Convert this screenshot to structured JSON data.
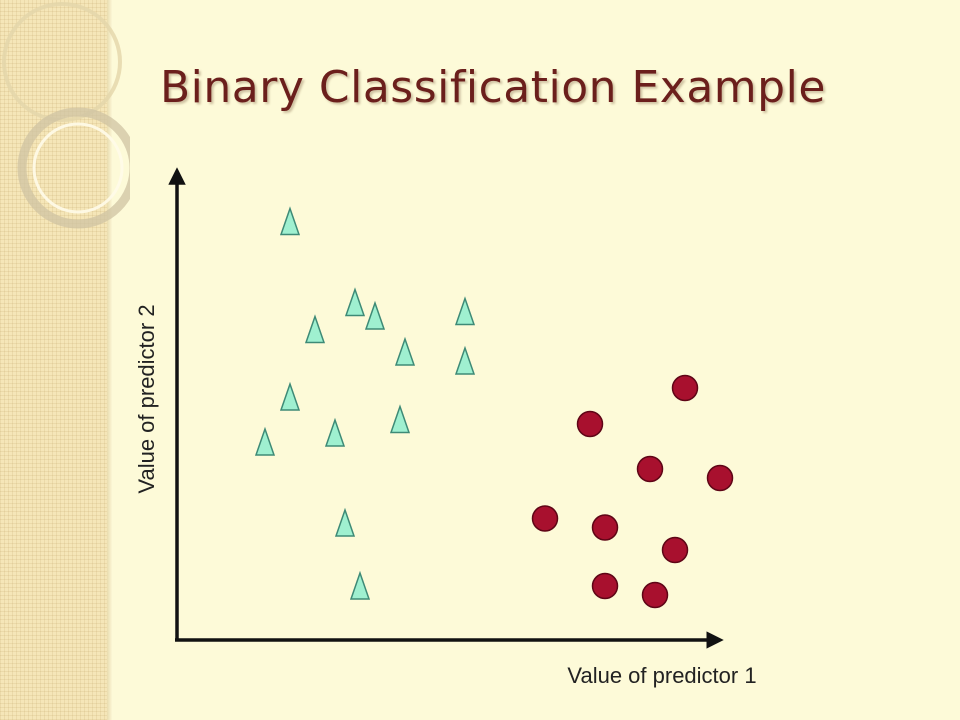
{
  "slide": {
    "title": "Binary Classification Example"
  },
  "colors": {
    "title": "#6b1f1c",
    "triangle_fill": "#9ff0d0",
    "triangle_stroke": "#3e8a76",
    "circle_fill": "#a8102e",
    "circle_stroke": "#5e0516",
    "axis": "#111111"
  },
  "chart_data": {
    "type": "scatter",
    "xlabel": "Value of predictor 1",
    "ylabel": "Value of predictor 2",
    "grid": false,
    "legend": "none",
    "xlim": [
      0,
      10
    ],
    "ylim": [
      0,
      10
    ],
    "series": [
      {
        "marker": "triangle",
        "points": [
          {
            "x": 1.6,
            "y": 9.3
          },
          {
            "x": 2.9,
            "y": 7.5
          },
          {
            "x": 3.3,
            "y": 7.2
          },
          {
            "x": 5.1,
            "y": 7.3
          },
          {
            "x": 2.1,
            "y": 6.9
          },
          {
            "x": 3.9,
            "y": 6.4
          },
          {
            "x": 5.1,
            "y": 6.2
          },
          {
            "x": 1.6,
            "y": 5.4
          },
          {
            "x": 3.8,
            "y": 4.9
          },
          {
            "x": 2.5,
            "y": 4.6
          },
          {
            "x": 1.1,
            "y": 4.4
          },
          {
            "x": 2.7,
            "y": 2.6
          },
          {
            "x": 3.0,
            "y": 1.2
          }
        ]
      },
      {
        "marker": "circle",
        "points": [
          {
            "x": 9.5,
            "y": 5.6
          },
          {
            "x": 7.6,
            "y": 4.8
          },
          {
            "x": 8.8,
            "y": 3.8
          },
          {
            "x": 10.2,
            "y": 3.6
          },
          {
            "x": 6.7,
            "y": 2.7
          },
          {
            "x": 7.9,
            "y": 2.5
          },
          {
            "x": 9.3,
            "y": 2.0
          },
          {
            "x": 7.9,
            "y": 1.2
          },
          {
            "x": 8.9,
            "y": 1.0
          }
        ]
      }
    ]
  }
}
